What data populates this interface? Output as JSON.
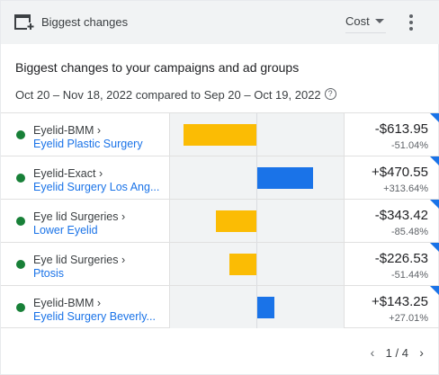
{
  "header": {
    "title": "Biggest changes",
    "metric_label": "Cost"
  },
  "heading": "Biggest changes to your campaigns and ad groups",
  "date_range": "Oct 20 – Nov 18, 2022 compared to Sep 20 – Oct 19, 2022",
  "rows": [
    {
      "campaign": "Eyelid-BMM ›",
      "ad_group": "Eyelid Plastic Surgery",
      "change": "-$613.95",
      "percent": "-51.04%",
      "change_value": -613.95,
      "status_color": "#188038",
      "bar_color": "#fbbc04"
    },
    {
      "campaign": "Eyelid-Exact ›",
      "ad_group": "Eyelid Surgery Los Ang...",
      "change": "+$470.55",
      "percent": "+313.64%",
      "change_value": 470.55,
      "status_color": "#188038",
      "bar_color": "#1a73e8"
    },
    {
      "campaign": "Eye lid Surgeries ›",
      "ad_group": "Lower Eyelid",
      "change": "-$343.42",
      "percent": "-85.48%",
      "change_value": -343.42,
      "status_color": "#188038",
      "bar_color": "#fbbc04"
    },
    {
      "campaign": "Eye lid Surgeries ›",
      "ad_group": "Ptosis",
      "change": "-$226.53",
      "percent": "-51.44%",
      "change_value": -226.53,
      "status_color": "#188038",
      "bar_color": "#fbbc04"
    },
    {
      "campaign": "Eyelid-BMM ›",
      "ad_group": "Eyelid Surgery Beverly...",
      "change": "+$143.25",
      "percent": "+27.01%",
      "change_value": 143.25,
      "status_color": "#188038",
      "bar_color": "#1a73e8"
    }
  ],
  "pagination": {
    "text": "1 / 4"
  },
  "icons": {
    "header": "add-chart-icon",
    "more": "more-vert-icon",
    "help": "help-icon",
    "prev": "chevron-left-icon",
    "next": "chevron-right-icon"
  }
}
